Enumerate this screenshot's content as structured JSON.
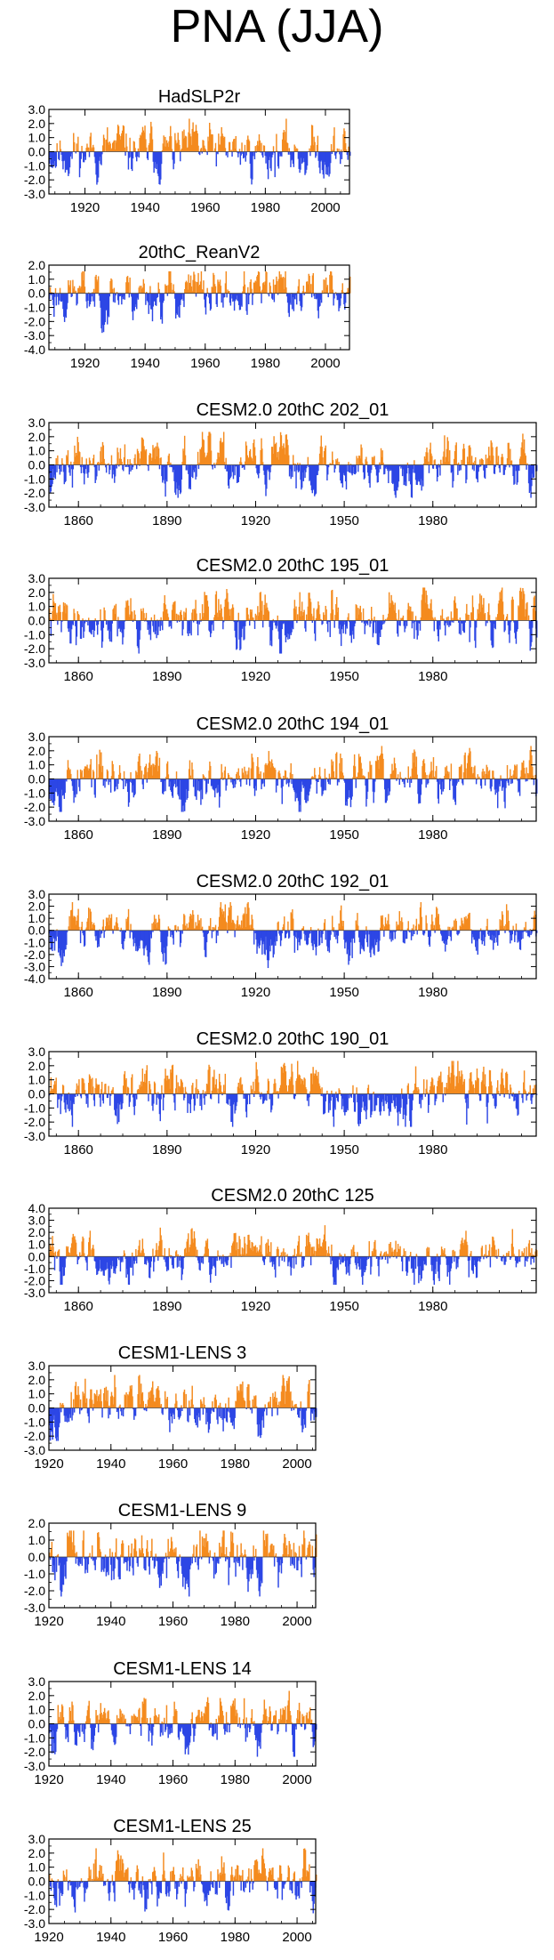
{
  "figure_title": "PNA (JJA)",
  "colors": {
    "positive": "#f48b1f",
    "negative": "#2c46e5",
    "axis": "#000000"
  },
  "chart_data": [
    {
      "type": "area",
      "title": "HadSLP2r",
      "x_range": [
        1908,
        2008
      ],
      "ylim": [
        -3.0,
        3.0
      ],
      "yticks": [
        "3.0",
        "2.0",
        "1.0",
        "0.0",
        "-1.0",
        "-2.0",
        "-3.0"
      ],
      "xticks": [
        1920,
        1940,
        1960,
        1980,
        2000
      ],
      "seed": 11,
      "xlabel": "",
      "ylabel": ""
    },
    {
      "type": "area",
      "title": "20thC_ReanV2",
      "x_range": [
        1908,
        2008
      ],
      "ylim": [
        -4.0,
        2.0
      ],
      "yticks": [
        "2.0",
        "1.0",
        "0.0",
        "-1.0",
        "-2.0",
        "-3.0",
        "-4.0"
      ],
      "xticks": [
        1920,
        1940,
        1960,
        1980,
        2000
      ],
      "seed": 23,
      "xlabel": "",
      "ylabel": ""
    },
    {
      "type": "area",
      "title": "CESM2.0 20thC 202_01",
      "x_range": [
        1850,
        2015
      ],
      "ylim": [
        -3.0,
        3.0
      ],
      "yticks": [
        "3.0",
        "2.0",
        "1.0",
        "0.0",
        "-1.0",
        "-2.0",
        "-3.0"
      ],
      "xticks": [
        1860,
        1890,
        1920,
        1950,
        1980
      ],
      "seed": 37,
      "xlabel": "",
      "ylabel": ""
    },
    {
      "type": "area",
      "title": "CESM2.0 20thC 195_01",
      "x_range": [
        1850,
        2015
      ],
      "ylim": [
        -3.0,
        3.0
      ],
      "yticks": [
        "3.0",
        "2.0",
        "1.0",
        "0.0",
        "-1.0",
        "-2.0",
        "-3.0"
      ],
      "xticks": [
        1860,
        1890,
        1920,
        1950,
        1980
      ],
      "seed": 41,
      "xlabel": "",
      "ylabel": ""
    },
    {
      "type": "area",
      "title": "CESM2.0 20thC 194_01",
      "x_range": [
        1850,
        2015
      ],
      "ylim": [
        -3.0,
        3.0
      ],
      "yticks": [
        "3.0",
        "2.0",
        "1.0",
        "0.0",
        "-1.0",
        "-2.0",
        "-3.0"
      ],
      "xticks": [
        1860,
        1890,
        1920,
        1950,
        1980
      ],
      "seed": 53,
      "xlabel": "",
      "ylabel": ""
    },
    {
      "type": "area",
      "title": "CESM2.0 20thC 192_01",
      "x_range": [
        1850,
        2015
      ],
      "ylim": [
        -4.0,
        3.0
      ],
      "yticks": [
        "3.0",
        "2.0",
        "1.0",
        "0.0",
        "-1.0",
        "-2.0",
        "-3.0",
        "-4.0"
      ],
      "xticks": [
        1860,
        1890,
        1920,
        1950,
        1980
      ],
      "seed": 67,
      "xlabel": "",
      "ylabel": ""
    },
    {
      "type": "area",
      "title": "CESM2.0 20thC 190_01",
      "x_range": [
        1850,
        2015
      ],
      "ylim": [
        -3.0,
        3.0
      ],
      "yticks": [
        "3.0",
        "2.0",
        "1.0",
        "0.0",
        "-1.0",
        "-2.0",
        "-3.0"
      ],
      "xticks": [
        1860,
        1890,
        1920,
        1950,
        1980
      ],
      "seed": 71,
      "xlabel": "",
      "ylabel": ""
    },
    {
      "type": "area",
      "title": "CESM2.0 20thC 125",
      "x_range": [
        1850,
        2015
      ],
      "ylim": [
        -3.0,
        4.0
      ],
      "yticks": [
        "4.0",
        "3.0",
        "2.0",
        "1.0",
        "0.0",
        "-1.0",
        "-2.0",
        "-3.0"
      ],
      "xticks": [
        1860,
        1890,
        1920,
        1950,
        1980
      ],
      "seed": 83,
      "xlabel": "",
      "ylabel": ""
    },
    {
      "type": "area",
      "title": "CESM1-LENS 3",
      "x_range": [
        1920,
        2006
      ],
      "ylim": [
        -3.0,
        3.0
      ],
      "yticks": [
        "3.0",
        "2.0",
        "1.0",
        "0.0",
        "-1.0",
        "-2.0",
        "-3.0"
      ],
      "xticks": [
        1920,
        1940,
        1960,
        1980,
        2000
      ],
      "seed": 97,
      "xlabel": "",
      "ylabel": ""
    },
    {
      "type": "area",
      "title": "CESM1-LENS 9",
      "x_range": [
        1920,
        2006
      ],
      "ylim": [
        -3.0,
        2.0
      ],
      "yticks": [
        "2.0",
        "1.0",
        "0.0",
        "-1.0",
        "-2.0",
        "-3.0"
      ],
      "xticks": [
        1920,
        1940,
        1960,
        1980,
        2000
      ],
      "seed": 101,
      "xlabel": "",
      "ylabel": ""
    },
    {
      "type": "area",
      "title": "CESM1-LENS 14",
      "x_range": [
        1920,
        2006
      ],
      "ylim": [
        -3.0,
        3.0
      ],
      "yticks": [
        "3.0",
        "2.0",
        "1.0",
        "0.0",
        "-1.0",
        "-2.0",
        "-3.0"
      ],
      "xticks": [
        1920,
        1940,
        1960,
        1980,
        2000
      ],
      "seed": 113,
      "xlabel": "",
      "ylabel": ""
    },
    {
      "type": "area",
      "title": "CESM1-LENS 25",
      "x_range": [
        1920,
        2006
      ],
      "ylim": [
        -3.0,
        3.0
      ],
      "yticks": [
        "3.0",
        "2.0",
        "1.0",
        "0.0",
        "-1.0",
        "-2.0",
        "-3.0"
      ],
      "xticks": [
        1920,
        1940,
        1960,
        1980,
        2000
      ],
      "seed": 127,
      "xlabel": "",
      "ylabel": ""
    }
  ]
}
